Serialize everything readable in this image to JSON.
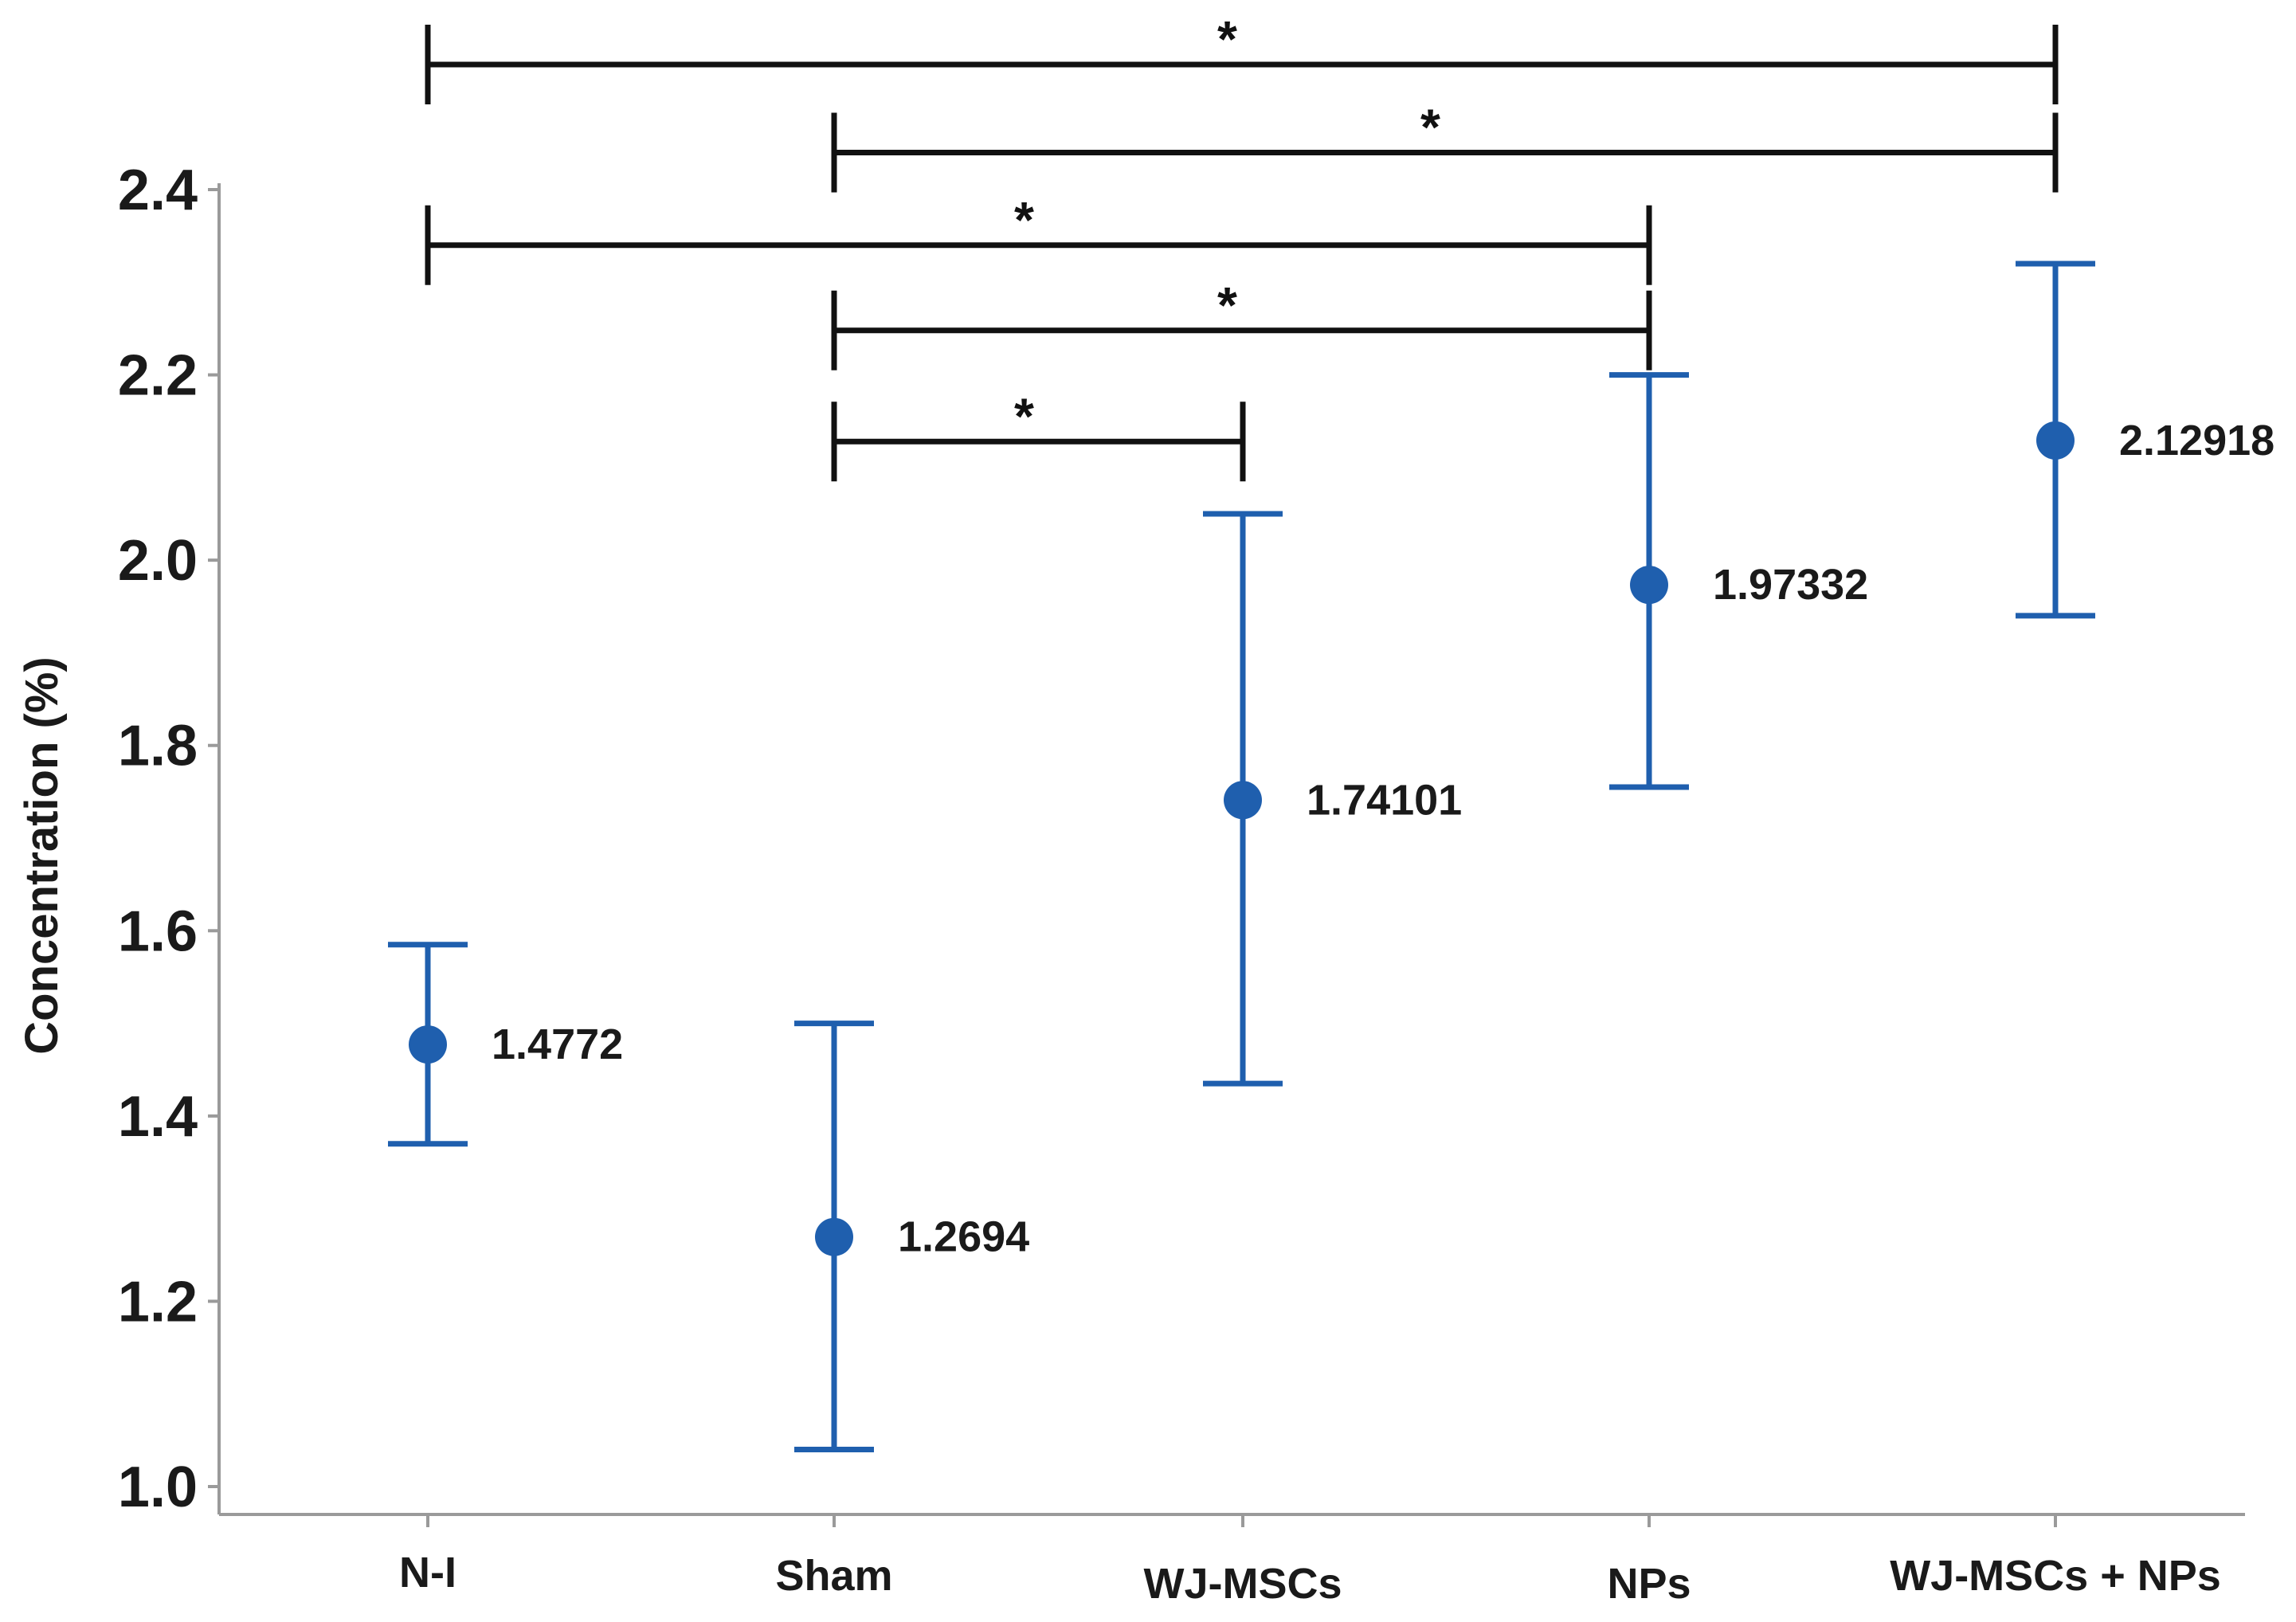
{
  "chart_data": {
    "type": "scatter",
    "subtype": "mean-with-error-bars",
    "title": "",
    "xlabel": "",
    "ylabel": "Concentration (%)",
    "ylim": [
      1.0,
      2.4
    ],
    "yticks": [
      "1.0",
      "1.2",
      "1.4",
      "1.6",
      "1.8",
      "2.0",
      "2.2",
      "2.4"
    ],
    "grid": false,
    "colors": {
      "series": "#1f5fae",
      "axis": "#9a9a9a",
      "bracket": "#111111",
      "text": "#1a1a1a"
    },
    "categories": [
      "N-I",
      "Sham",
      "WJ-MSCs",
      "NPs",
      "WJ-MSCs + NPs"
    ],
    "series": [
      {
        "name": "Concentration",
        "values": [
          1.4772,
          1.2694,
          1.74101,
          1.97332,
          2.12918
        ],
        "lower": [
          1.37,
          1.04,
          1.435,
          1.755,
          1.94
        ],
        "upper": [
          1.585,
          1.5,
          2.05,
          2.2,
          2.32
        ],
        "value_labels": [
          "1.4772",
          "1.2694",
          "1.74101",
          "1.97332",
          "2.12918"
        ]
      }
    ],
    "significance": [
      {
        "from": 0,
        "to": 4,
        "level": 2.535,
        "label": "*"
      },
      {
        "from": 1,
        "to": 4,
        "level": 2.44,
        "label": "*"
      },
      {
        "from": 0,
        "to": 3,
        "level": 2.34,
        "label": "*"
      },
      {
        "from": 1,
        "to": 3,
        "level": 2.248,
        "label": "*"
      },
      {
        "from": 1,
        "to": 2,
        "level": 2.128,
        "label": "*"
      }
    ]
  }
}
